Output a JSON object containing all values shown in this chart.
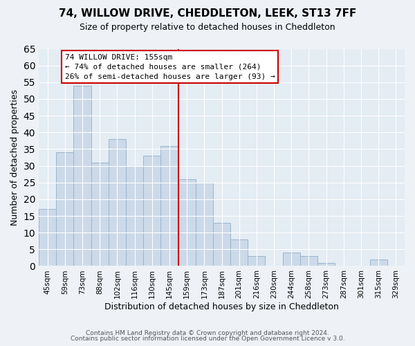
{
  "title": "74, WILLOW DRIVE, CHEDDLETON, LEEK, ST13 7FF",
  "subtitle": "Size of property relative to detached houses in Cheddleton",
  "xlabel": "Distribution of detached houses by size in Cheddleton",
  "ylabel": "Number of detached properties",
  "bar_labels": [
    "45sqm",
    "59sqm",
    "73sqm",
    "88sqm",
    "102sqm",
    "116sqm",
    "130sqm",
    "145sqm",
    "159sqm",
    "173sqm",
    "187sqm",
    "201sqm",
    "216sqm",
    "230sqm",
    "244sqm",
    "258sqm",
    "273sqm",
    "287sqm",
    "301sqm",
    "315sqm",
    "329sqm"
  ],
  "bar_values": [
    17,
    34,
    54,
    31,
    38,
    30,
    33,
    36,
    26,
    25,
    13,
    8,
    3,
    0,
    4,
    3,
    1,
    0,
    0,
    2,
    0
  ],
  "bar_color": "#ccd9e8",
  "bar_edge_color": "#9ab5cc",
  "highlight_line_color": "#cc0000",
  "annotation_title": "74 WILLOW DRIVE: 155sqm",
  "annotation_line1": "← 74% of detached houses are smaller (264)",
  "annotation_line2": "26% of semi-detached houses are larger (93) →",
  "annotation_box_color": "#ffffff",
  "annotation_box_edge": "#cc0000",
  "footer_line1": "Contains HM Land Registry data © Crown copyright and database right 2024.",
  "footer_line2": "Contains public sector information licensed under the Open Government Licence v 3.0.",
  "ylim": [
    0,
    65
  ],
  "background_color": "#eef2f7",
  "plot_background": "#e4ecf4",
  "grid_color": "#ffffff",
  "title_fontsize": 11,
  "subtitle_fontsize": 9,
  "ylabel_fontsize": 9,
  "xlabel_fontsize": 9,
  "tick_fontsize": 7.5,
  "annotation_fontsize": 8,
  "footer_fontsize": 6.5
}
